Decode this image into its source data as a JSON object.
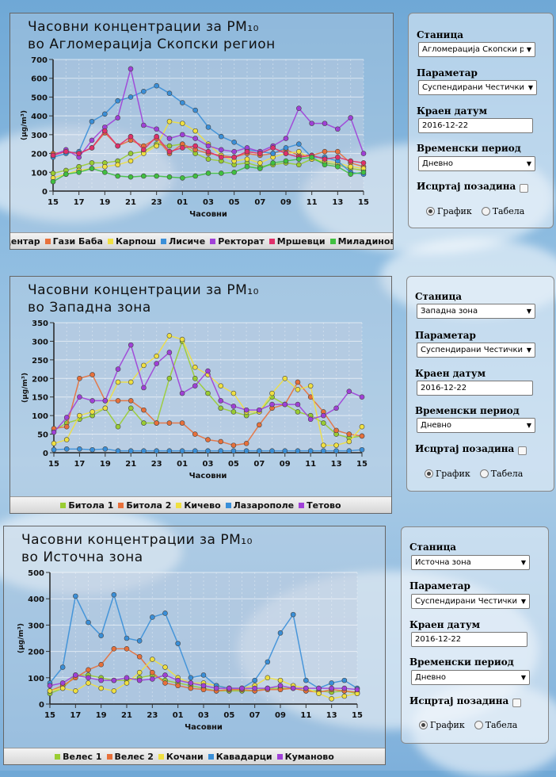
{
  "panels": [
    {
      "title_line1": "Часовни концентрации за PM₁₀",
      "title_line2": "во Агломерација Скопски регион",
      "form": {
        "station_label": "Станица",
        "station_value": "Агломерација Скопски ре",
        "param_label": "Параметар",
        "param_value": "Суспендирани Честички",
        "date_label": "Краен датум",
        "date_value": "2016-12-22",
        "period_label": "Временски период",
        "period_value": "Дневно",
        "bg_label": "Исцртај позадина",
        "radio_chart": "График",
        "radio_table": "Табела"
      }
    },
    {
      "title_line1": "Часовни концентрации за PM₁₀",
      "title_line2": "во Западна зона",
      "form": {
        "station_label": "Станица",
        "station_value": "Западна зона",
        "param_label": "Параметар",
        "param_value": "Суспендирани Честички",
        "date_label": "Краен датум",
        "date_value": "2016-12-22",
        "period_label": "Временски период",
        "period_value": "Дневно",
        "bg_label": "Исцртај позадина",
        "radio_chart": "График",
        "radio_table": "Табела"
      }
    },
    {
      "title_line1": "Часовни концентрации за PM₁₀",
      "title_line2": "во Источна зона",
      "form": {
        "station_label": "Станица",
        "station_value": "Источна зона",
        "param_label": "Параметар",
        "param_value": "Суспендирани Честички",
        "date_label": "Краен датум",
        "date_value": "2016-12-22",
        "period_label": "Временски период",
        "period_value": "Дневно",
        "bg_label": "Исцртај позадина",
        "radio_chart": "График",
        "radio_table": "Табела"
      }
    }
  ],
  "chart_data": [
    {
      "type": "line",
      "title": "Часовни концентрации за PM₁₀ во Агломерација Скопски регион",
      "xlabel": "Часовни",
      "ylabel": "(µg/m³)",
      "x": [
        "15",
        "16",
        "17",
        "18",
        "19",
        "20",
        "21",
        "22",
        "23",
        "00",
        "01",
        "02",
        "03",
        "04",
        "05",
        "06",
        "07",
        "08",
        "09",
        "10",
        "11",
        "12",
        "13",
        "14",
        "15"
      ],
      "xticks": [
        "15",
        "17",
        "19",
        "21",
        "23",
        "01",
        "03",
        "05",
        "07",
        "09",
        "11",
        "13",
        "15"
      ],
      "ylim": [
        0,
        700
      ],
      "yticks": [
        0,
        100,
        200,
        300,
        400,
        500,
        600,
        700
      ],
      "grid": true,
      "legend": "bottom",
      "series": [
        {
          "name": "Центар",
          "color": "#9acd32",
          "values": [
            95,
            110,
            130,
            150,
            150,
            160,
            200,
            210,
            250,
            240,
            250,
            200,
            170,
            160,
            140,
            150,
            130,
            140,
            150,
            140,
            170,
            150,
            140,
            120,
            110
          ]
        },
        {
          "name": "Гази Баба",
          "color": "#e8703a",
          "values": [
            200,
            210,
            200,
            230,
            310,
            240,
            270,
            240,
            280,
            200,
            250,
            220,
            200,
            190,
            180,
            200,
            190,
            200,
            220,
            190,
            190,
            210,
            210,
            150,
            130
          ]
        },
        {
          "name": "Карпош",
          "color": "#f0e040",
          "values": [
            70,
            90,
            110,
            120,
            130,
            140,
            160,
            200,
            240,
            370,
            360,
            320,
            250,
            190,
            160,
            170,
            150,
            180,
            200,
            210,
            170,
            160,
            150,
            130,
            120
          ]
        },
        {
          "name": "Лисиче",
          "color": "#3a8fd8",
          "values": [
            180,
            200,
            210,
            370,
            410,
            480,
            500,
            530,
            560,
            520,
            470,
            430,
            340,
            290,
            260,
            220,
            210,
            200,
            230,
            250,
            180,
            180,
            160,
            100,
            90
          ]
        },
        {
          "name": "Ректорат",
          "color": "#a040d8",
          "values": [
            190,
            220,
            180,
            270,
            340,
            390,
            650,
            350,
            330,
            280,
            300,
            280,
            240,
            220,
            210,
            230,
            210,
            240,
            280,
            440,
            360,
            360,
            330,
            390,
            200
          ]
        },
        {
          "name": "Мршевци",
          "color": "#e0306a",
          "values": [
            190,
            210,
            200,
            230,
            320,
            240,
            290,
            220,
            290,
            210,
            230,
            240,
            210,
            180,
            180,
            210,
            200,
            230,
            200,
            180,
            190,
            170,
            180,
            160,
            150
          ]
        },
        {
          "name": "Миладиновци",
          "color": "#40c040",
          "values": [
            50,
            90,
            100,
            120,
            100,
            80,
            75,
            80,
            80,
            75,
            70,
            80,
            95,
            95,
            100,
            130,
            120,
            150,
            160,
            170,
            180,
            140,
            130,
            90,
            100
          ]
        }
      ]
    },
    {
      "type": "line",
      "title": "Часовни концентрации за PM₁₀ во Западна зона",
      "xlabel": "Часовни",
      "ylabel": "(µg/m³)",
      "x": [
        "15",
        "16",
        "17",
        "18",
        "19",
        "20",
        "21",
        "22",
        "23",
        "00",
        "01",
        "02",
        "03",
        "04",
        "05",
        "06",
        "07",
        "08",
        "09",
        "10",
        "11",
        "12",
        "13",
        "14",
        "15"
      ],
      "xticks": [
        "15",
        "17",
        "19",
        "21",
        "23",
        "01",
        "03",
        "05",
        "07",
        "09",
        "11",
        "13",
        "15"
      ],
      "ylim": [
        0,
        350
      ],
      "yticks": [
        0,
        50,
        100,
        150,
        200,
        250,
        300,
        350
      ],
      "grid": true,
      "legend": "bottom",
      "series": [
        {
          "name": "Битола 1",
          "color": "#9acd32",
          "values": [
            60,
            80,
            90,
            100,
            120,
            70,
            120,
            80,
            80,
            200,
            300,
            200,
            160,
            120,
            110,
            100,
            110,
            150,
            130,
            110,
            100,
            80,
            50,
            40,
            45
          ]
        },
        {
          "name": "Битола 2",
          "color": "#e8703a",
          "values": [
            65,
            70,
            200,
            210,
            140,
            140,
            140,
            115,
            80,
            80,
            80,
            50,
            35,
            30,
            20,
            25,
            75,
            120,
            130,
            190,
            150,
            110,
            60,
            50,
            45
          ]
        },
        {
          "name": "Кичево",
          "color": "#f0e040",
          "values": [
            25,
            35,
            100,
            110,
            120,
            190,
            190,
            235,
            260,
            315,
            305,
            230,
            210,
            180,
            160,
            110,
            110,
            160,
            200,
            170,
            180,
            20,
            20,
            30,
            70
          ]
        },
        {
          "name": "Лазарополе",
          "color": "#3a8fd8",
          "values": [
            8,
            10,
            10,
            8,
            10,
            5,
            5,
            5,
            5,
            5,
            5,
            5,
            5,
            5,
            5,
            5,
            5,
            5,
            5,
            5,
            5,
            5,
            5,
            5,
            8
          ]
        },
        {
          "name": "Тетово",
          "color": "#a040d8",
          "values": [
            55,
            95,
            150,
            140,
            140,
            225,
            290,
            175,
            240,
            270,
            160,
            180,
            220,
            140,
            125,
            115,
            115,
            130,
            130,
            130,
            90,
            100,
            120,
            165,
            150
          ]
        }
      ]
    },
    {
      "type": "line",
      "title": "Часовни концентрации за PM₁₀ во Источна зона",
      "xlabel": "Часовни",
      "ylabel": "(µg/m³)",
      "x": [
        "15",
        "16",
        "17",
        "18",
        "19",
        "20",
        "21",
        "22",
        "23",
        "00",
        "01",
        "02",
        "03",
        "04",
        "05",
        "06",
        "07",
        "08",
        "09",
        "10",
        "11",
        "12",
        "13",
        "14",
        "15"
      ],
      "xticks": [
        "15",
        "17",
        "19",
        "21",
        "23",
        "01",
        "03",
        "05",
        "07",
        "09",
        "11",
        "13",
        "15"
      ],
      "ylim": [
        0,
        500
      ],
      "yticks": [
        0,
        100,
        200,
        300,
        400,
        500
      ],
      "grid": true,
      "legend": "bottom",
      "series": [
        {
          "name": "Велес 1",
          "color": "#9acd32",
          "values": [
            40,
            60,
            110,
            110,
            100,
            90,
            90,
            100,
            110,
            90,
            80,
            70,
            60,
            50,
            50,
            50,
            50,
            60,
            60,
            60,
            50,
            50,
            45,
            50,
            40
          ]
        },
        {
          "name": "Велес 2",
          "color": "#e8703a",
          "values": [
            50,
            70,
            100,
            130,
            150,
            210,
            210,
            180,
            120,
            80,
            70,
            60,
            55,
            50,
            55,
            55,
            50,
            55,
            55,
            60,
            50,
            45,
            55,
            50,
            45
          ]
        },
        {
          "name": "Кочани",
          "color": "#f0e040",
          "values": [
            50,
            60,
            50,
            80,
            60,
            50,
            80,
            120,
            170,
            140,
            100,
            80,
            80,
            70,
            60,
            60,
            70,
            100,
            90,
            70,
            60,
            40,
            20,
            30,
            40
          ]
        },
        {
          "name": "Кавадарци",
          "color": "#3a8fd8",
          "values": [
            80,
            140,
            410,
            310,
            260,
            415,
            250,
            240,
            330,
            345,
            230,
            100,
            110,
            70,
            60,
            60,
            90,
            160,
            270,
            340,
            90,
            60,
            80,
            90,
            60
          ]
        },
        {
          "name": "Куманово",
          "color": "#a040d8",
          "values": [
            70,
            80,
            110,
            100,
            90,
            90,
            100,
            90,
            95,
            110,
            90,
            80,
            70,
            60,
            60,
            60,
            60,
            60,
            70,
            60,
            60,
            60,
            60,
            60,
            55
          ]
        }
      ]
    }
  ]
}
